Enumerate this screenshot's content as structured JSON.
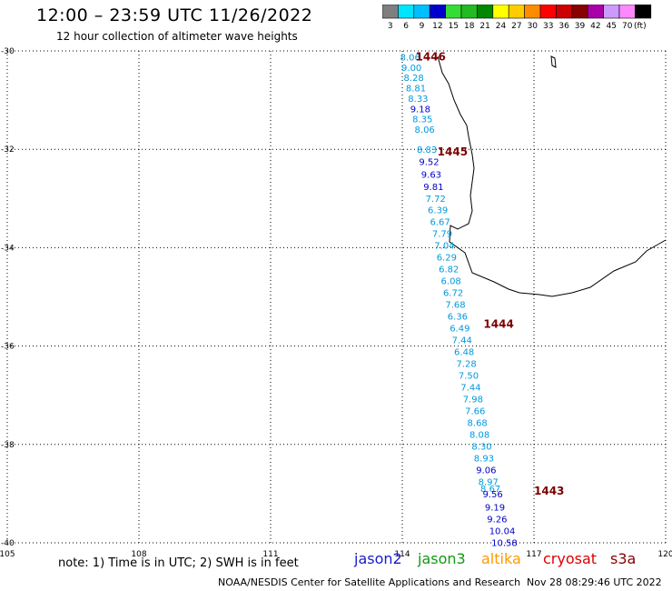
{
  "header": {
    "title": "12:00 – 23:59 UTC 11/26/2022",
    "subtitle": "12 hour collection of altimeter wave heights"
  },
  "colorbar": {
    "unit": "(ft)",
    "bins": [
      {
        "label": "3",
        "color": "#7f7f7f"
      },
      {
        "label": "6",
        "color": "#00e5ff"
      },
      {
        "label": "9",
        "color": "#00bfff"
      },
      {
        "label": "12",
        "color": "#0000cc"
      },
      {
        "label": "15",
        "color": "#33dd33"
      },
      {
        "label": "18",
        "color": "#22bb22"
      },
      {
        "label": "21",
        "color": "#008800"
      },
      {
        "label": "24",
        "color": "#ffff00"
      },
      {
        "label": "27",
        "color": "#ffcc00"
      },
      {
        "label": "30",
        "color": "#ff8c00"
      },
      {
        "label": "33",
        "color": "#ff0000"
      },
      {
        "label": "36",
        "color": "#cc0000"
      },
      {
        "label": "39",
        "color": "#880000"
      },
      {
        "label": "42",
        "color": "#aa00aa"
      },
      {
        "label": "45",
        "color": "#cc99ff"
      },
      {
        "label": "70",
        "color": "#ff88ff"
      },
      {
        "label": "",
        "color": "#000000"
      }
    ]
  },
  "note": "note:  1) Time is in UTC;  2) SWH is in feet",
  "satellites": [
    {
      "label": "jason2",
      "color": "#1a1acc"
    },
    {
      "label": "jason3",
      "color": "#119911"
    },
    {
      "label": "altika",
      "color": "#ff9900"
    },
    {
      "label": "cryosat",
      "color": "#dd0000"
    },
    {
      "label": "s3a",
      "color": "#880000"
    }
  ],
  "footer": "NOAA/NESDIS Center for Satellite Applications and Research",
  "timestamp": "Nov 28 08:29:46 UTC 2022",
  "chart_data": {
    "type": "scatter",
    "xlim": [
      105,
      120
    ],
    "ylim": [
      -40,
      -30
    ],
    "x_ticks": [
      "105",
      "108",
      "111",
      "114",
      "117",
      "120"
    ],
    "y_ticks": [
      "-30",
      "-32",
      "-34",
      "-36",
      "-38",
      "-40"
    ],
    "grid": true,
    "time_labels": [
      {
        "text": "1446",
        "x": 114.3,
        "y": -30.12
      },
      {
        "text": "1445",
        "x": 114.8,
        "y": -32.05
      },
      {
        "text": "1444",
        "x": 115.85,
        "y": -35.55
      },
      {
        "text": "1443",
        "x": 117.0,
        "y": -38.95
      }
    ],
    "points": [
      {
        "lon": 113.95,
        "lat": -30.12,
        "value": "8.06",
        "color": "#0099dd"
      },
      {
        "lon": 113.98,
        "lat": -30.33,
        "value": "9.00",
        "color": "#0099dd"
      },
      {
        "lon": 114.03,
        "lat": -30.54,
        "value": "8.28",
        "color": "#0099dd"
      },
      {
        "lon": 114.08,
        "lat": -30.75,
        "value": "8.81",
        "color": "#0099dd"
      },
      {
        "lon": 114.13,
        "lat": -30.96,
        "value": "8.33",
        "color": "#0099dd"
      },
      {
        "lon": 114.18,
        "lat": -31.17,
        "value": "9.18",
        "color": "#0000cc"
      },
      {
        "lon": 114.23,
        "lat": -31.38,
        "value": "8.35",
        "color": "#0099dd"
      },
      {
        "lon": 114.28,
        "lat": -31.59,
        "value": "8.06",
        "color": "#0099dd"
      },
      {
        "lon": 114.33,
        "lat": -32.0,
        "value": "8.83",
        "color": "#0099dd"
      },
      {
        "lon": 114.38,
        "lat": -32.25,
        "value": "9.52",
        "color": "#0000cc"
      },
      {
        "lon": 114.43,
        "lat": -32.5,
        "value": "9.63",
        "color": "#0000cc"
      },
      {
        "lon": 114.48,
        "lat": -32.75,
        "value": "9.81",
        "color": "#0000cc"
      },
      {
        "lon": 114.53,
        "lat": -32.99,
        "value": "7.72",
        "color": "#0099dd"
      },
      {
        "lon": 114.58,
        "lat": -33.23,
        "value": "6.39",
        "color": "#0099dd"
      },
      {
        "lon": 114.63,
        "lat": -33.47,
        "value": "6.67",
        "color": "#0099dd"
      },
      {
        "lon": 114.68,
        "lat": -33.71,
        "value": "7.79",
        "color": "#0099dd"
      },
      {
        "lon": 114.73,
        "lat": -33.95,
        "value": "7.04",
        "color": "#0099dd"
      },
      {
        "lon": 114.78,
        "lat": -34.19,
        "value": "6.29",
        "color": "#0099dd"
      },
      {
        "lon": 114.83,
        "lat": -34.43,
        "value": "6.82",
        "color": "#0099dd"
      },
      {
        "lon": 114.88,
        "lat": -34.67,
        "value": "6.08",
        "color": "#0099dd"
      },
      {
        "lon": 114.93,
        "lat": -34.91,
        "value": "6.72",
        "color": "#0099dd"
      },
      {
        "lon": 114.98,
        "lat": -35.15,
        "value": "7.68",
        "color": "#0099dd"
      },
      {
        "lon": 115.03,
        "lat": -35.39,
        "value": "6.36",
        "color": "#0099dd"
      },
      {
        "lon": 115.08,
        "lat": -35.63,
        "value": "6.49",
        "color": "#0099dd"
      },
      {
        "lon": 115.13,
        "lat": -35.87,
        "value": "7.44",
        "color": "#0099dd"
      },
      {
        "lon": 115.18,
        "lat": -36.11,
        "value": "6.48",
        "color": "#0099dd"
      },
      {
        "lon": 115.23,
        "lat": -36.35,
        "value": "7.28",
        "color": "#0099dd"
      },
      {
        "lon": 115.28,
        "lat": -36.59,
        "value": "7.50",
        "color": "#0099dd"
      },
      {
        "lon": 115.33,
        "lat": -36.83,
        "value": "7.44",
        "color": "#0099dd"
      },
      {
        "lon": 115.38,
        "lat": -37.07,
        "value": "7.98",
        "color": "#0099dd"
      },
      {
        "lon": 115.43,
        "lat": -37.31,
        "value": "7.66",
        "color": "#0099dd"
      },
      {
        "lon": 115.48,
        "lat": -37.55,
        "value": "8.68",
        "color": "#0099dd"
      },
      {
        "lon": 115.53,
        "lat": -37.79,
        "value": "8.08",
        "color": "#0099dd"
      },
      {
        "lon": 115.58,
        "lat": -38.03,
        "value": "8.30",
        "color": "#0099dd"
      },
      {
        "lon": 115.63,
        "lat": -38.27,
        "value": "8.93",
        "color": "#0099dd"
      },
      {
        "lon": 115.68,
        "lat": -38.51,
        "value": "9.06",
        "color": "#0000cc"
      },
      {
        "lon": 115.73,
        "lat": -38.75,
        "value": "8.97",
        "color": "#0099dd"
      },
      {
        "lon": 115.78,
        "lat": -38.89,
        "value": "8.67",
        "color": "#0099dd"
      },
      {
        "lon": 115.83,
        "lat": -39.0,
        "value": "9.56",
        "color": "#0000cc"
      },
      {
        "lon": 115.88,
        "lat": -39.27,
        "value": "9.19",
        "color": "#0000cc"
      },
      {
        "lon": 115.93,
        "lat": -39.51,
        "value": "9.26",
        "color": "#0000cc"
      },
      {
        "lon": 115.98,
        "lat": -39.75,
        "value": "10.04",
        "color": "#0000cc"
      },
      {
        "lon": 116.03,
        "lat": -39.99,
        "value": "10.58",
        "color": "#0000cc"
      }
    ]
  }
}
